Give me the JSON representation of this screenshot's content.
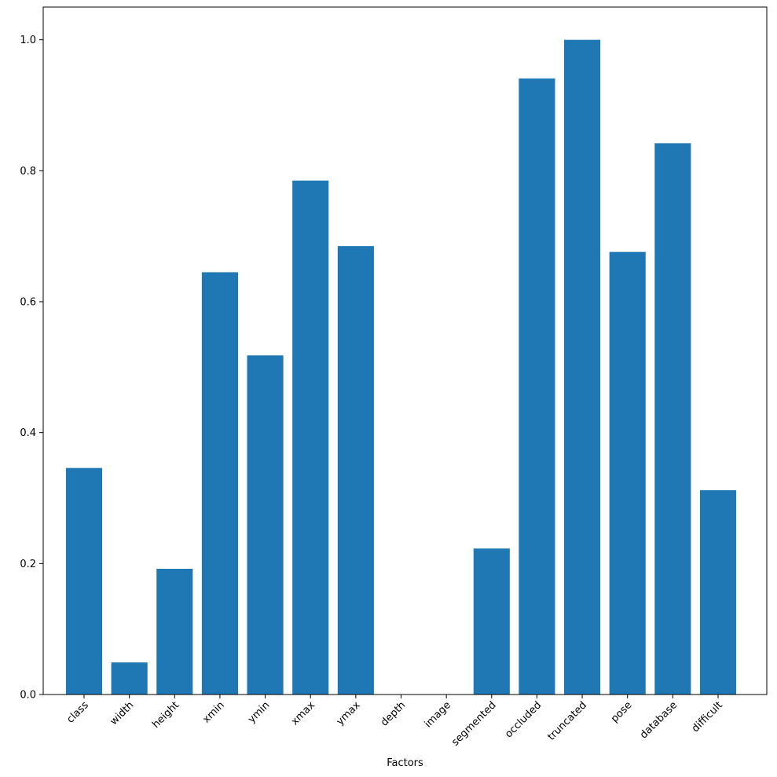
{
  "chart_data": {
    "type": "bar",
    "title": "",
    "xlabel": "Factors",
    "ylabel": "",
    "categories": [
      "class",
      "width",
      "height",
      "xmin",
      "ymin",
      "xmax",
      "ymax",
      "depth",
      "image",
      "segmented",
      "occluded",
      "truncated",
      "pose",
      "database",
      "difficult"
    ],
    "values": [
      0.346,
      0.049,
      0.192,
      0.645,
      0.518,
      0.785,
      0.685,
      0.0,
      0.0,
      0.223,
      0.941,
      1.0,
      0.676,
      0.842,
      0.312
    ],
    "ylim": [
      0,
      1.05
    ],
    "yticks": [
      0.0,
      0.2,
      0.4,
      0.6,
      0.8,
      1.0
    ],
    "ytick_labels": [
      "0.0",
      "0.2",
      "0.4",
      "0.6",
      "0.8",
      "1.0"
    ],
    "grid": false,
    "bar_color": "#1f77b4"
  }
}
